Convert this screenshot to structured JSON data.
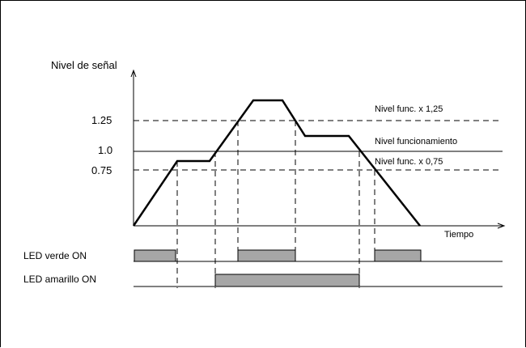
{
  "y_axis_label": "Nivel de señal",
  "x_axis_label": "Tiempo",
  "levels": [
    {
      "value_label": "1.25",
      "line_label": "Nivel func. x 1,25",
      "style": "dashed"
    },
    {
      "value_label": "1.0",
      "line_label": "Nivel funcionamiento",
      "style": "solid"
    },
    {
      "value_label": "0.75",
      "line_label": "Nivel func. x 0,75",
      "style": "dashed"
    }
  ],
  "leds": [
    {
      "label": "LED verde ON"
    },
    {
      "label": "LED amarillo ON"
    }
  ],
  "colors": {
    "line": "#000000",
    "led_fill": "#a6a6a6",
    "background": "#ffffff"
  }
}
